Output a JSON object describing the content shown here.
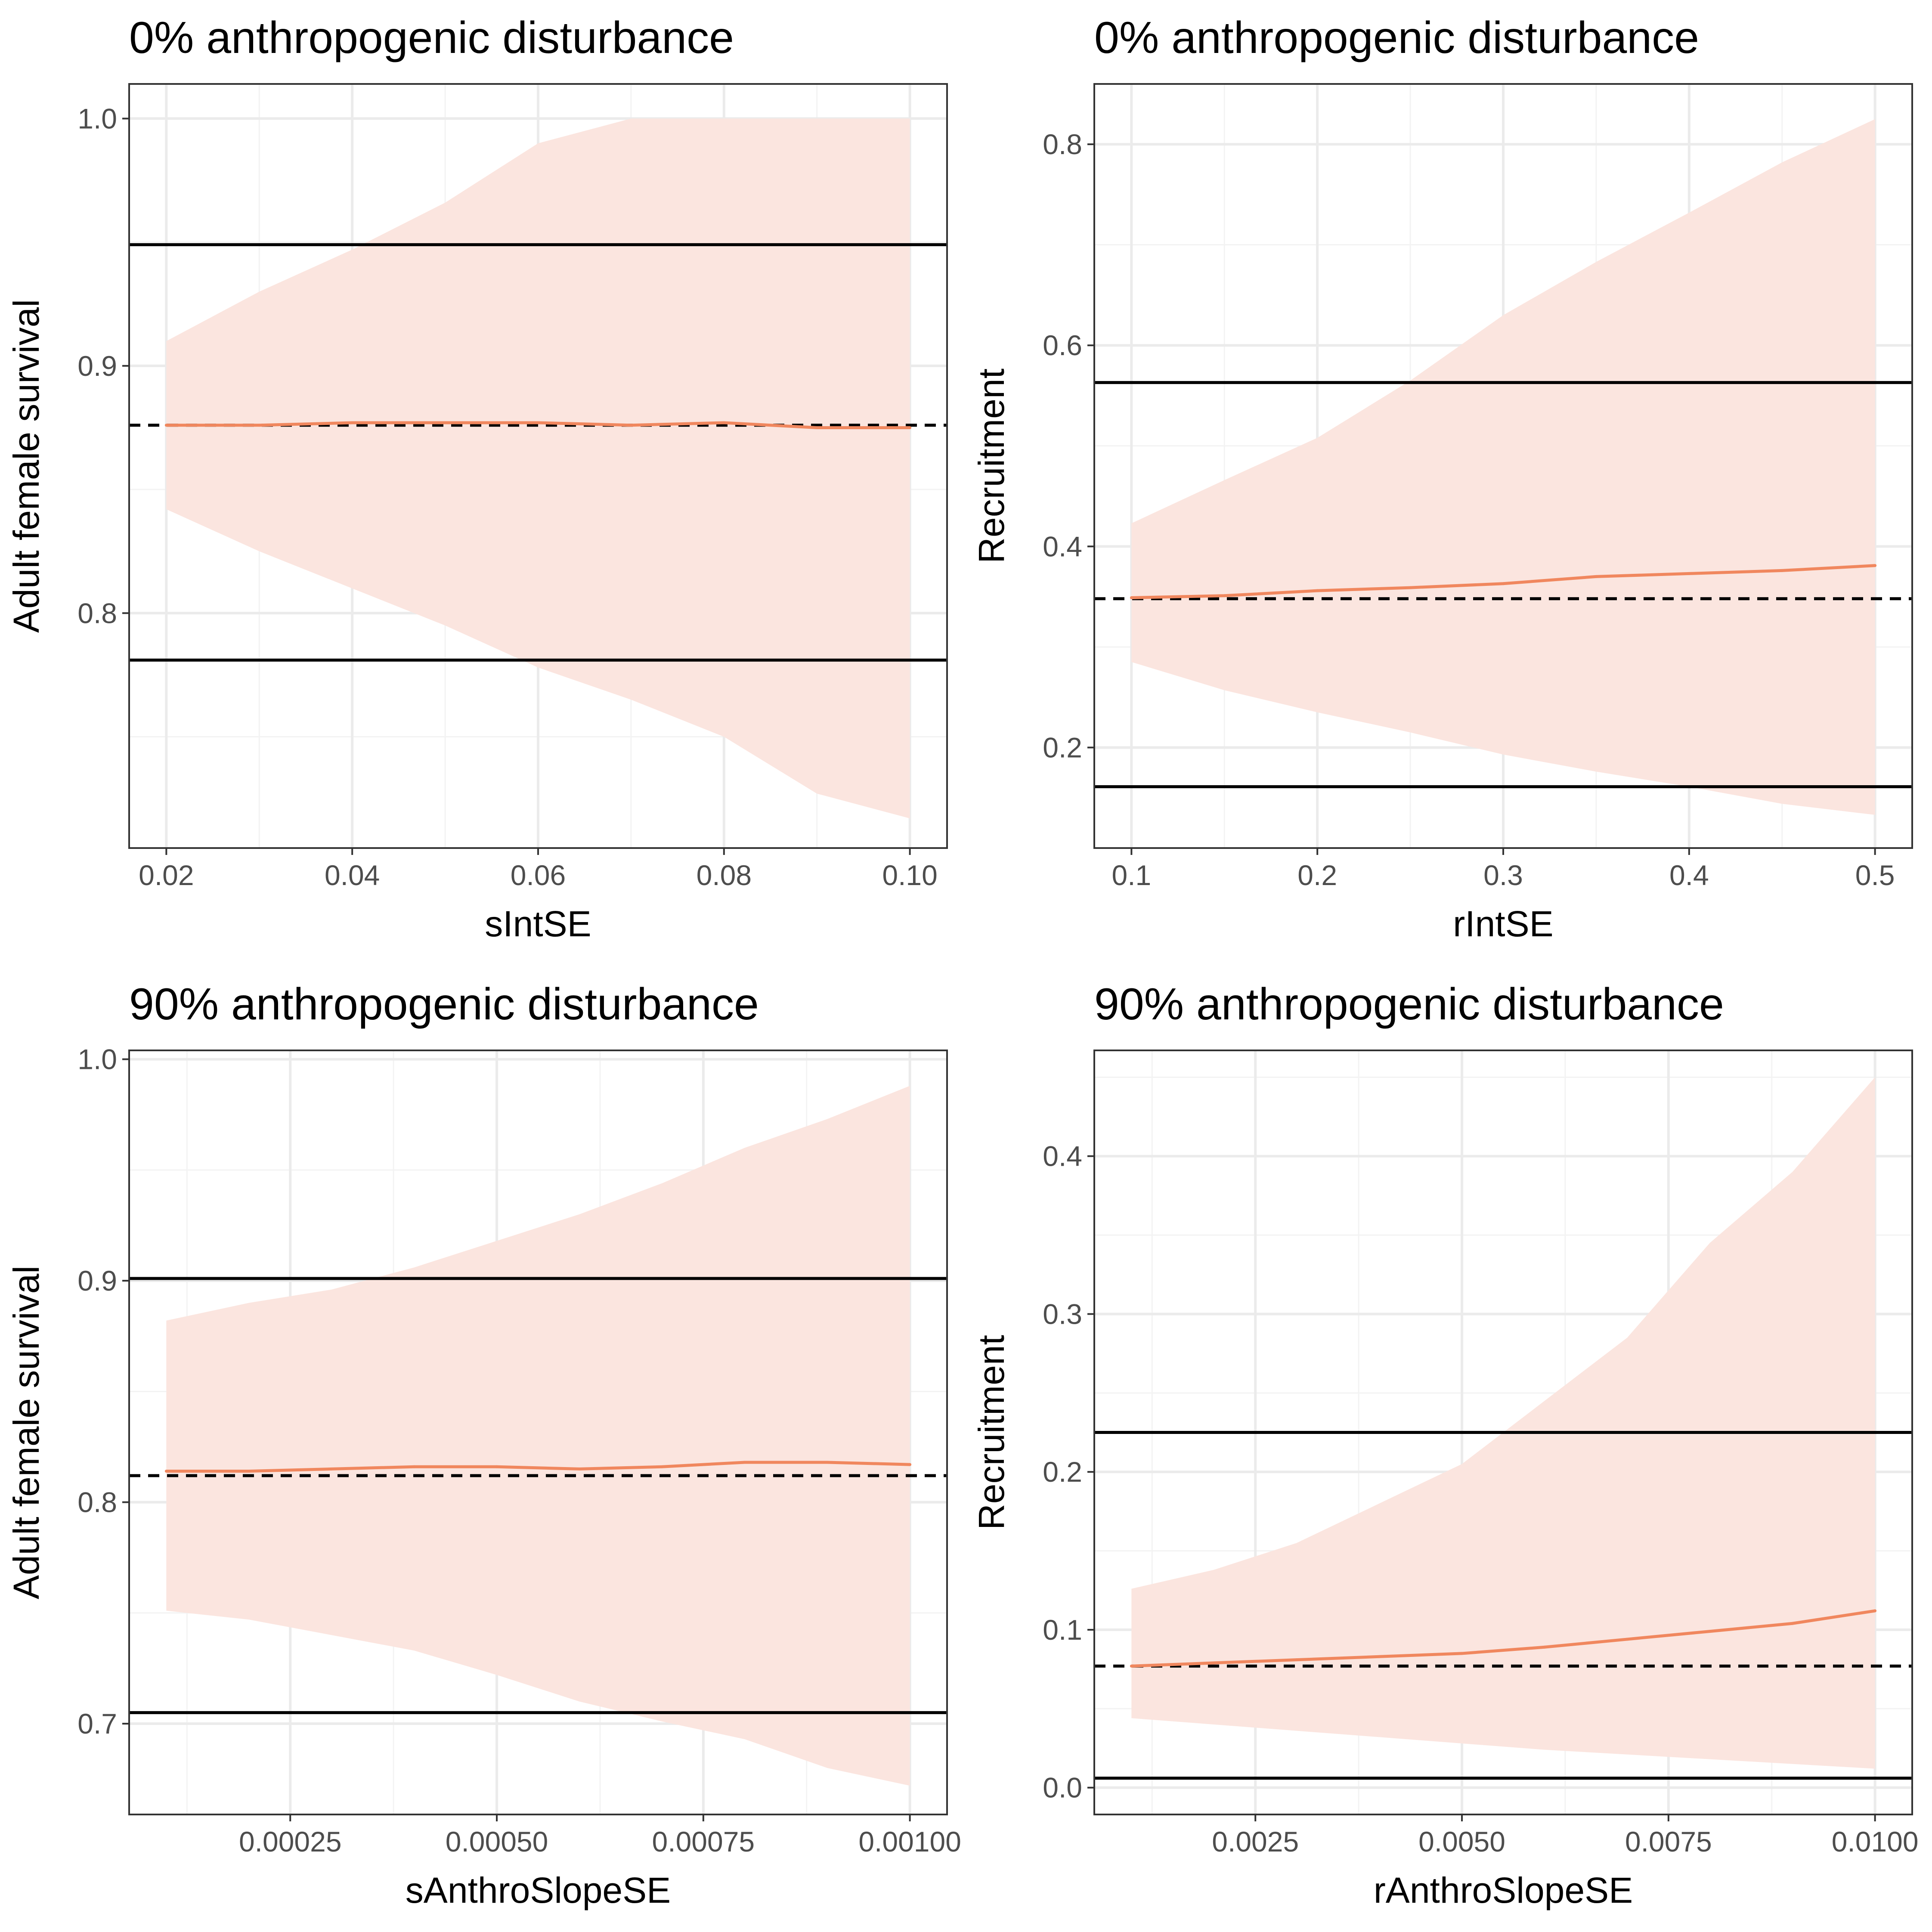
{
  "colors": {
    "ribbon": "#fbe5df",
    "mean_line": "#f0875e",
    "ref_line": "#000000"
  },
  "chart_data": [
    {
      "type": "line",
      "title": "0% anthropogenic disturbance",
      "xlabel": "sIntSE",
      "ylabel": "Adult female survival",
      "xlim": [
        0.016,
        0.104
      ],
      "ylim": [
        0.705,
        1.014
      ],
      "x_ticks": [
        0.02,
        0.04,
        0.06,
        0.08,
        0.1
      ],
      "x_tick_labels": [
        "0.02",
        "0.04",
        "0.06",
        "0.08",
        "0.10"
      ],
      "y_ticks": [
        0.8,
        0.9,
        1.0
      ],
      "y_tick_labels": [
        "0.8",
        "0.9",
        "1.0"
      ],
      "x": [
        0.02,
        0.03,
        0.04,
        0.05,
        0.06,
        0.07,
        0.08,
        0.09,
        0.1
      ],
      "series": [
        {
          "values": [
            0.876,
            0.876,
            0.877,
            0.877,
            0.877,
            0.876,
            0.877,
            0.875,
            0.875
          ]
        }
      ],
      "ribbon": {
        "lower": [
          0.842,
          0.825,
          0.81,
          0.795,
          0.778,
          0.765,
          0.75,
          0.727,
          0.717
        ],
        "upper": [
          0.91,
          0.93,
          0.947,
          0.966,
          0.99,
          1.0,
          1.0,
          1.0,
          1.0
        ]
      },
      "hlines": [
        {
          "y": 0.949,
          "style": "solid"
        },
        {
          "y": 0.781,
          "style": "solid"
        },
        {
          "y": 0.876,
          "style": "dashed"
        }
      ],
      "grid": true
    },
    {
      "type": "line",
      "title": "0% anthropogenic disturbance",
      "xlabel": "rIntSE",
      "ylabel": "Recruitment",
      "xlim": [
        0.08,
        0.52
      ],
      "ylim": [
        0.1,
        0.86
      ],
      "x_ticks": [
        0.1,
        0.2,
        0.3,
        0.4,
        0.5
      ],
      "x_tick_labels": [
        "0.1",
        "0.2",
        "0.3",
        "0.4",
        "0.5"
      ],
      "y_ticks": [
        0.2,
        0.4,
        0.6,
        0.8
      ],
      "y_tick_labels": [
        "0.2",
        "0.4",
        "0.6",
        "0.8"
      ],
      "x": [
        0.1,
        0.15,
        0.2,
        0.25,
        0.3,
        0.35,
        0.4,
        0.45,
        0.5
      ],
      "series": [
        {
          "values": [
            0.349,
            0.351,
            0.356,
            0.359,
            0.363,
            0.37,
            0.373,
            0.376,
            0.381
          ]
        }
      ],
      "ribbon": {
        "lower": [
          0.285,
          0.257,
          0.235,
          0.215,
          0.193,
          0.176,
          0.161,
          0.144,
          0.133
        ],
        "upper": [
          0.423,
          0.466,
          0.508,
          0.565,
          0.63,
          0.683,
          0.732,
          0.782,
          0.825
        ]
      },
      "hlines": [
        {
          "y": 0.563,
          "style": "solid"
        },
        {
          "y": 0.161,
          "style": "solid"
        },
        {
          "y": 0.348,
          "style": "dashed"
        }
      ],
      "grid": true
    },
    {
      "type": "line",
      "title": "90% anthropogenic disturbance",
      "xlabel": "sAnthroSlopeSE",
      "ylabel": "Adult female survival",
      "xlim": [
        5.5e-05,
        0.001045
      ],
      "ylim": [
        0.659,
        1.004
      ],
      "x_ticks": [
        0.00025,
        0.0005,
        0.00075,
        0.001
      ],
      "x_tick_labels": [
        "0.00025",
        "0.00050",
        "0.00075",
        "0.00100"
      ],
      "y_ticks": [
        0.7,
        0.8,
        0.9,
        1.0
      ],
      "y_tick_labels": [
        "0.7",
        "0.8",
        "0.9",
        "1.0"
      ],
      "x": [
        0.0001,
        0.0002,
        0.0003,
        0.0004,
        0.0005,
        0.0006,
        0.0007,
        0.0008,
        0.0009,
        0.001
      ],
      "series": [
        {
          "values": [
            0.814,
            0.814,
            0.815,
            0.816,
            0.816,
            0.815,
            0.816,
            0.818,
            0.818,
            0.817
          ]
        }
      ],
      "ribbon": {
        "lower": [
          0.751,
          0.747,
          0.74,
          0.733,
          0.722,
          0.71,
          0.701,
          0.693,
          0.68,
          0.672
        ],
        "upper": [
          0.882,
          0.89,
          0.896,
          0.906,
          0.918,
          0.93,
          0.944,
          0.96,
          0.973,
          0.988
        ]
      },
      "hlines": [
        {
          "y": 0.901,
          "style": "solid"
        },
        {
          "y": 0.705,
          "style": "solid"
        },
        {
          "y": 0.812,
          "style": "dashed"
        }
      ],
      "grid": true
    },
    {
      "type": "line",
      "title": "90% anthropogenic disturbance",
      "xlabel": "rAnthroSlopeSE",
      "ylabel": "Recruitment",
      "xlim": [
        0.00055,
        0.01045
      ],
      "ylim": [
        -0.017,
        0.467
      ],
      "x_ticks": [
        0.0025,
        0.005,
        0.0075,
        0.01
      ],
      "x_tick_labels": [
        "0.0025",
        "0.0050",
        "0.0075",
        "0.0100"
      ],
      "y_ticks": [
        0.0,
        0.1,
        0.2,
        0.3,
        0.4
      ],
      "y_tick_labels": [
        "0.0",
        "0.1",
        "0.2",
        "0.3",
        "0.4"
      ],
      "x": [
        0.001,
        0.002,
        0.003,
        0.004,
        0.005,
        0.006,
        0.007,
        0.008,
        0.009,
        0.01
      ],
      "series": [
        {
          "values": [
            0.077,
            0.079,
            0.081,
            0.083,
            0.085,
            0.089,
            0.094,
            0.099,
            0.104,
            0.112
          ]
        }
      ],
      "ribbon": {
        "lower": [
          0.044,
          0.04,
          0.036,
          0.032,
          0.028,
          0.024,
          0.021,
          0.018,
          0.015,
          0.012
        ],
        "upper": [
          0.126,
          0.138,
          0.155,
          0.18,
          0.205,
          0.245,
          0.285,
          0.345,
          0.39,
          0.45
        ]
      },
      "hlines": [
        {
          "y": 0.225,
          "style": "solid"
        },
        {
          "y": 0.006,
          "style": "solid"
        },
        {
          "y": 0.077,
          "style": "dashed"
        }
      ],
      "grid": true
    }
  ]
}
